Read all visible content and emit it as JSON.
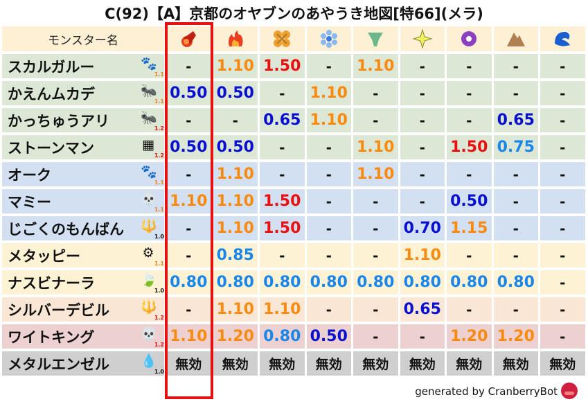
{
  "title": "C(92)【A】京都のオヤブンのあやうき地図[特66](メラ)",
  "header": {
    "name_label": "モンスター名",
    "elements": [
      {
        "name": "mera",
        "icon": "fireball-icon",
        "highlighted": true
      },
      {
        "name": "gira",
        "icon": "flame-icon"
      },
      {
        "name": "io",
        "icon": "explosion-icon"
      },
      {
        "name": "hyado",
        "icon": "ice-crystal-icon"
      },
      {
        "name": "bagi",
        "icon": "tornado-icon"
      },
      {
        "name": "dein",
        "icon": "lightning-star-icon"
      },
      {
        "name": "doruma",
        "icon": "dark-swirl-icon"
      },
      {
        "name": "jibaria",
        "icon": "earth-rock-icon"
      },
      {
        "name": "water",
        "icon": "wave-icon"
      }
    ]
  },
  "colors": {
    "weak_strong": "#e81010",
    "weak": "#f98a10",
    "resist_strong": "#0a10d0",
    "resist": "#1a86e8",
    "highlight_border": "#e51010",
    "row_green": "#dce8d5",
    "row_blue": "#d3e0f1",
    "row_yellow": "#fdf2d4",
    "row_peach": "#f9e6d4",
    "row_pink": "#edd1d1",
    "row_gray": "#cfcfcf",
    "header_bg": "#fdf0d5"
  },
  "rows": [
    {
      "name": "スカルガルー",
      "icon": "paw-icon",
      "scale": "1.1",
      "bg": "green",
      "values": [
        "-",
        "1.10",
        "1.50",
        "-",
        "1.10",
        "-",
        "-",
        "-",
        "-"
      ]
    },
    {
      "name": "かえんムカデ",
      "icon": "bug-icon",
      "scale": "1.1",
      "bg": "green",
      "values": [
        "0.50",
        "0.50",
        "-",
        "1.10",
        "-",
        "-",
        "-",
        "-",
        "-"
      ]
    },
    {
      "name": "かっちゅうアリ",
      "icon": "bug-icon",
      "scale": "1.2",
      "bg": "green",
      "values": [
        "-",
        "-",
        "0.65",
        "1.10",
        "-",
        "-",
        "-",
        "0.65",
        "-"
      ]
    },
    {
      "name": "ストーンマン",
      "icon": "brick-icon",
      "scale": "1.2",
      "bg": "green",
      "values": [
        "0.50",
        "0.50",
        "-",
        "-",
        "1.10",
        "-",
        "1.50",
        "0.75",
        "-"
      ]
    },
    {
      "name": "オーク",
      "icon": "paw-icon",
      "scale": "1.1",
      "bg": "blue",
      "values": [
        "-",
        "1.10",
        "-",
        "-",
        "1.10",
        "-",
        "-",
        "-",
        "-"
      ]
    },
    {
      "name": "マミー",
      "icon": "skull-icon",
      "scale": "1.1",
      "bg": "blue",
      "values": [
        "1.10",
        "1.10",
        "1.50",
        "-",
        "-",
        "-",
        "0.50",
        "-",
        "-"
      ]
    },
    {
      "name": "じごくのもんばん",
      "icon": "trident-icon",
      "scale": "1.0",
      "bg": "blue",
      "values": [
        "-",
        "1.10",
        "1.50",
        "-",
        "-",
        "0.70",
        "1.15",
        "-",
        "-"
      ]
    },
    {
      "name": "メタッピー",
      "icon": "gear-icon",
      "scale": "1.1",
      "bg": "yellow",
      "values": [
        "-",
        "0.85",
        "-",
        "-",
        "-",
        "1.10",
        "-",
        "-",
        "-"
      ]
    },
    {
      "name": "ナスビナーラ",
      "icon": "leaf-icon",
      "scale": "1.0",
      "bg": "yellow",
      "values": [
        "0.80",
        "0.80",
        "0.80",
        "0.80",
        "0.80",
        "0.80",
        "0.80",
        "0.80",
        "-"
      ]
    },
    {
      "name": "シルバーデビル",
      "icon": "trident-icon",
      "scale": "1.2",
      "bg": "peach",
      "values": [
        "-",
        "1.10",
        "1.10",
        "-",
        "-",
        "0.65",
        "-",
        "-",
        "-"
      ]
    },
    {
      "name": "ワイトキング",
      "icon": "skull-icon",
      "scale": "1.2",
      "bg": "pink",
      "values": [
        "1.10",
        "1.20",
        "0.80",
        "0.50",
        "-",
        "-",
        "1.20",
        "1.20",
        "-"
      ]
    },
    {
      "name": "メタルエンゼル",
      "icon": "slime-icon",
      "scale": "1.0",
      "bg": "gray",
      "values": [
        "無効",
        "無効",
        "無効",
        "無効",
        "無効",
        "無効",
        "無効",
        "無効",
        "無効"
      ]
    }
  ],
  "footer": {
    "text": "generated by CranberryBot",
    "icon": "cranberry-icon"
  }
}
